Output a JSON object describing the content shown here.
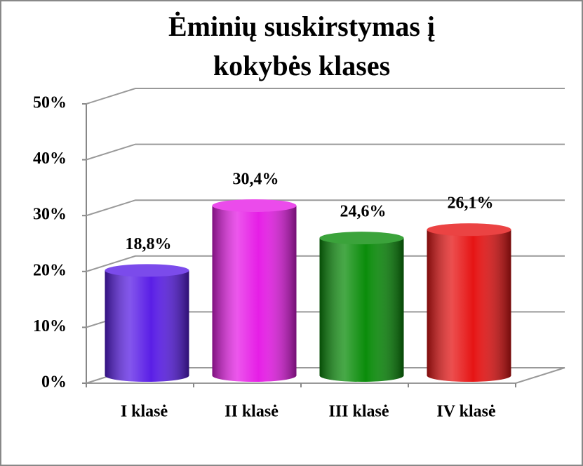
{
  "chart_data": {
    "type": "bar",
    "title": [
      "Ėminių suskirstymas į",
      "kokybės klases"
    ],
    "categories": [
      "I  klasė",
      "II  klasė",
      "III klasė",
      "IV klasė"
    ],
    "series": [
      {
        "values": [
          18.8,
          30.4,
          24.6,
          26.1
        ],
        "value_labels": [
          "18,8%",
          "30,4%",
          "24,6%",
          "26,1%"
        ],
        "colors": [
          "#5a1ee6",
          "#e61ee6",
          "#0a8c0a",
          "#e61414"
        ]
      }
    ],
    "ylim": [
      0,
      50
    ],
    "yticks": [
      {
        "value": 0,
        "label": "0%"
      },
      {
        "value": 10,
        "label": "10%"
      },
      {
        "value": 20,
        "label": "20%"
      },
      {
        "value": 30,
        "label": "30%"
      },
      {
        "value": 40,
        "label": "40%"
      },
      {
        "value": 50,
        "label": "50%"
      }
    ],
    "grid": true
  }
}
